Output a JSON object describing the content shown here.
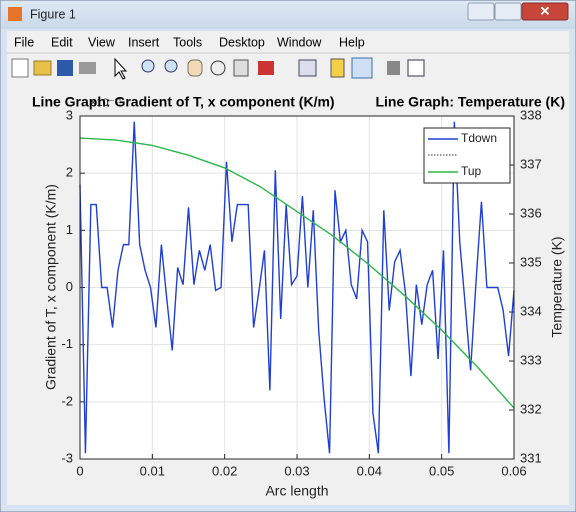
{
  "window": {
    "title": "Figure 1",
    "menu": [
      "File",
      "Edit",
      "View",
      "Insert",
      "Tools",
      "Desktop",
      "Window",
      "Help"
    ]
  },
  "chart_data": {
    "type": "line",
    "title": "Line Graph: Gradient of T, x component (K/m)",
    "title_right": "Line Graph: Temperature (K)",
    "y_multiplier": "×10⁻¹¹",
    "xlabel": "Arc length",
    "ylabel": "Gradient of T, x component (K/m)",
    "y2label": "Temperature (K)",
    "x": [
      0,
      0.00075,
      0.0015,
      0.00225,
      0.003,
      0.00375,
      0.0045,
      0.00525,
      0.006,
      0.00675,
      0.0075,
      0.00825,
      0.009,
      0.00975,
      0.0105,
      0.01125,
      0.012,
      0.01275,
      0.0135,
      0.01425,
      0.015,
      0.01575,
      0.0165,
      0.01725,
      0.018,
      0.01875,
      0.0195,
      0.02025,
      0.021,
      0.02175,
      0.0225,
      0.02325,
      0.024,
      0.02475,
      0.0255,
      0.02625,
      0.027,
      0.02775,
      0.0285,
      0.02925,
      0.03,
      0.03075,
      0.0315,
      0.03225,
      0.033,
      0.03375,
      0.0345,
      0.03525,
      0.036,
      0.03675,
      0.0375,
      0.03825,
      0.039,
      0.03975,
      0.0405,
      0.04125,
      0.042,
      0.04275,
      0.0435,
      0.04425,
      0.045,
      0.04575,
      0.0465,
      0.04725,
      0.048,
      0.04875,
      0.0495,
      0.05025,
      0.051,
      0.05175,
      0.0525,
      0.05325,
      0.054,
      0.05475,
      0.0555,
      0.05625,
      0.057,
      0.05775,
      0.0585,
      0.05925,
      0.06
    ],
    "series": [
      {
        "name": "Tdown",
        "color": "#1f3fd6",
        "values": [
          1.8,
          -2.9,
          1.45,
          1.45,
          0,
          0,
          -0.7,
          0.3,
          0.75,
          0.75,
          2.9,
          0.75,
          0.3,
          0,
          -0.7,
          0.75,
          -0.2,
          -1.1,
          0.35,
          0.05,
          1.4,
          0.05,
          0.65,
          0.3,
          0.75,
          -0.05,
          0,
          2.2,
          0.8,
          1.45,
          1.45,
          1.45,
          -0.7,
          -0.05,
          0.65,
          -1.8,
          2.05,
          -0.55,
          1.45,
          0.05,
          0.2,
          1.6,
          0,
          1.35,
          -0.75,
          -1.95,
          -2.9,
          1.7,
          0.8,
          1.0,
          0.05,
          -0.2,
          1.0,
          0.8,
          -2.2,
          -2.9,
          1.35,
          -0.4,
          0.45,
          0.65,
          -0.1,
          -1.55,
          0.05,
          -0.65,
          0.05,
          0.3,
          -1.25,
          0.65,
          -2.9,
          2.9,
          0.8,
          -0.3,
          -1.45,
          0.1,
          1.5,
          0,
          0,
          0,
          -0.4,
          -1.2,
          -0.05
        ]
      },
      {
        "name": "Tup",
        "color": "#2cb84a",
        "axis": "y2",
        "x": [
          0,
          0.005,
          0.01,
          0.015,
          0.02,
          0.025,
          0.03,
          0.035,
          0.04,
          0.045,
          0.05,
          0.055,
          0.06
        ],
        "values": [
          337.55,
          337.51,
          337.4,
          337.2,
          336.94,
          336.55,
          336.05,
          335.55,
          334.96,
          334.32,
          333.63,
          332.87,
          332.04
        ]
      }
    ],
    "xlim": [
      0,
      0.06
    ],
    "xticks": [
      0,
      0.01,
      0.02,
      0.03,
      0.04,
      0.05,
      0.06
    ],
    "ylim": [
      -3,
      3
    ],
    "yticks": [
      -3,
      -2,
      -1,
      0,
      1,
      2,
      3
    ],
    "y2lim": [
      331,
      338
    ],
    "y2ticks": [
      331,
      332,
      333,
      334,
      335,
      336,
      337,
      338
    ],
    "grid": true,
    "legend": "upper right"
  }
}
